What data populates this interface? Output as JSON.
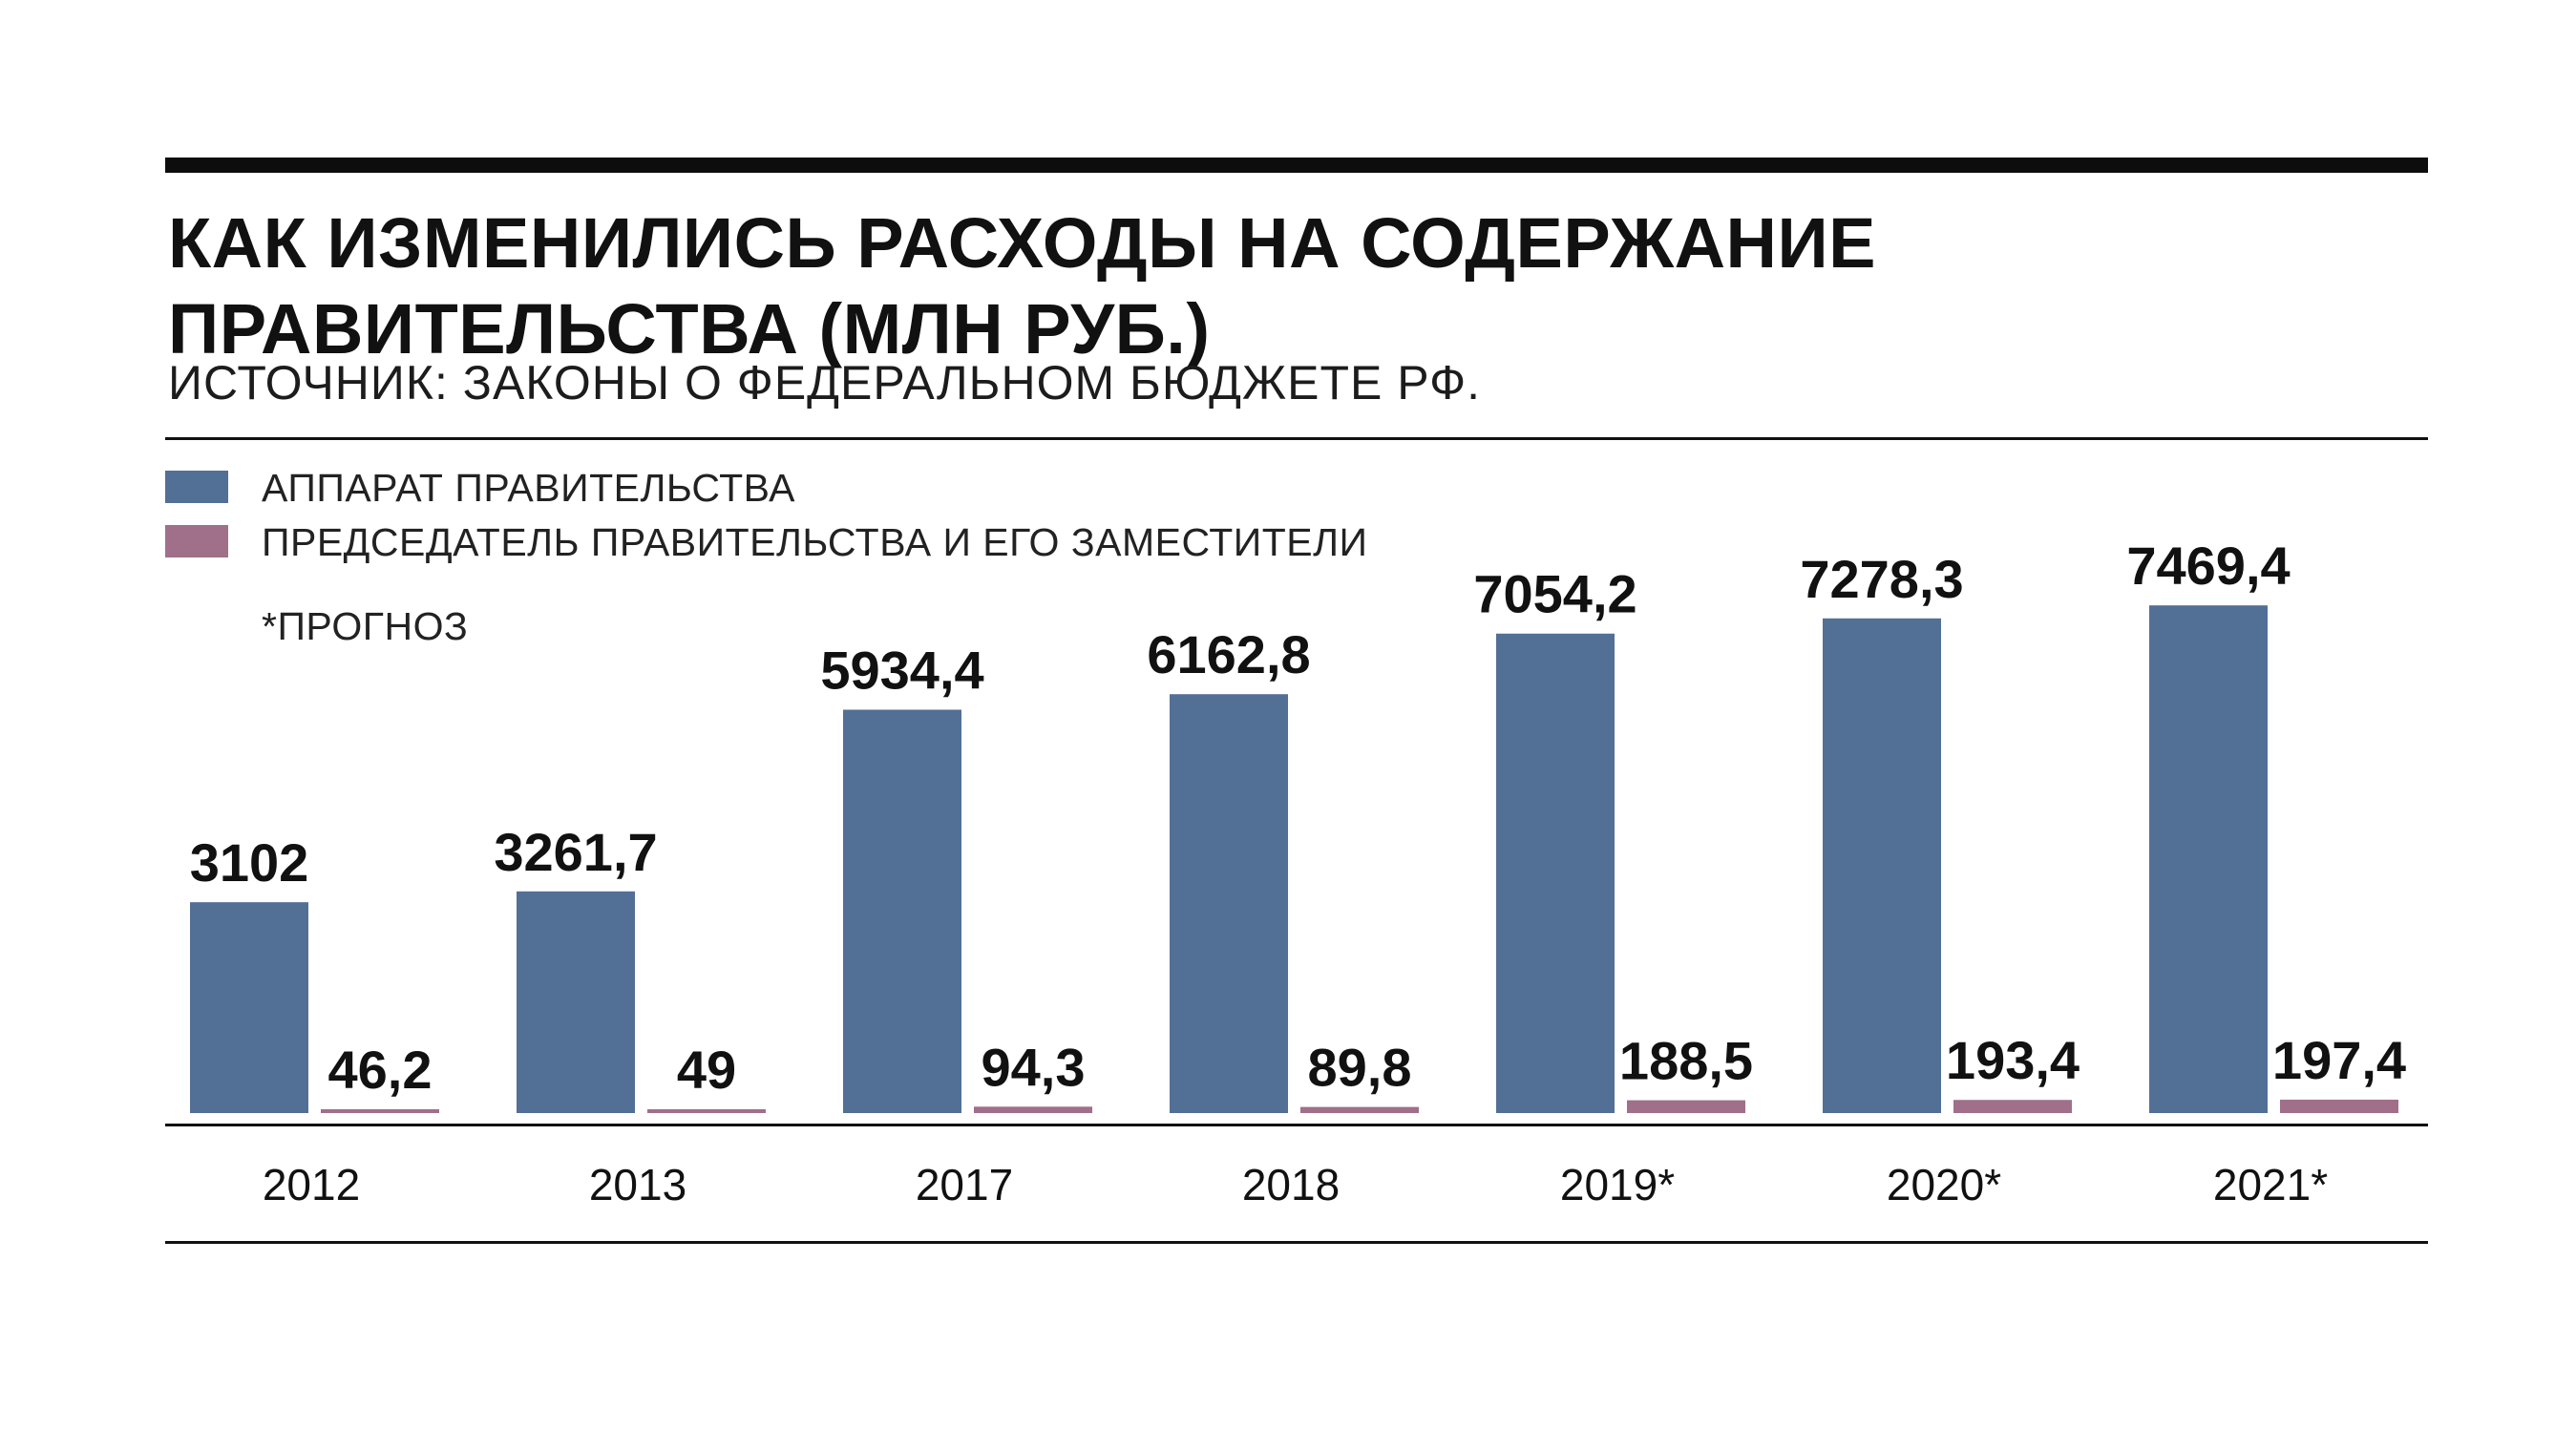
{
  "header": {
    "title": "КАК ИЗМЕНИЛИСЬ РАСХОДЫ НА СОДЕРЖАНИЕ ПРАВИТЕЛЬСТВА (МЛН РУБ.)",
    "source": "ИСТОЧНИК: ЗАКОНЫ О ФЕДЕРАЛЬНОМ БЮДЖЕТЕ РФ."
  },
  "legend": {
    "items": [
      {
        "label": "АППАРАТ ПРАВИТЕЛЬСТВА",
        "color": "#526f96"
      },
      {
        "label": "ПРЕДСЕДАТЕЛЬ ПРАВИТЕЛЬСТВА И ЕГО ЗАМЕСТИТЕЛИ",
        "color": "#a06f8a"
      }
    ],
    "note": "*ПРОГНОЗ"
  },
  "chart_data": {
    "type": "bar",
    "categories": [
      "2012",
      "2013",
      "2017",
      "2018",
      "2019*",
      "2020*",
      "2021*"
    ],
    "series": [
      {
        "name": "АППАРАТ ПРАВИТЕЛЬСТВА",
        "color": "#526f96",
        "values": [
          3102,
          3261.7,
          5934.4,
          6162.8,
          7054.2,
          7278.3,
          7469.4
        ],
        "labels": [
          "3102",
          "3261,7",
          "5934,4",
          "6162,8",
          "7054,2",
          "7278,3",
          "7469,4"
        ]
      },
      {
        "name": "ПРЕДСЕДАТЕЛЬ ПРАВИТЕЛЬСТВА И ЕГО ЗАМЕСТИТЕЛИ",
        "color": "#a06f8a",
        "values": [
          46.2,
          49,
          94.3,
          89.8,
          188.5,
          193.4,
          197.4
        ],
        "labels": [
          "46,2",
          "49",
          "94,3",
          "89,8",
          "188,5",
          "193,4",
          "197,4"
        ]
      }
    ],
    "ylim": [
      0,
      8000
    ],
    "grid": false,
    "legend_position": "top-left"
  }
}
